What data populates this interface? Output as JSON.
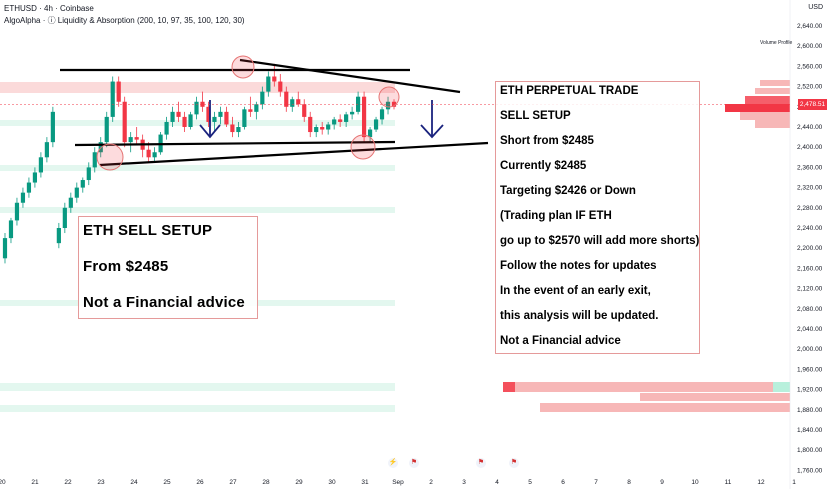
{
  "header": {
    "symbol_line": "ETHUSD · 4h · Coinbase",
    "indicator_line": "AlgoAlpha · ⓘ Liquidity & Absorption (200, 10, 97, 35, 100, 120, 30)",
    "currency": "USD",
    "volume_profile_label": "Volume Profile"
  },
  "current_price": "2,478.51",
  "colors": {
    "up": "#089981",
    "down": "#f23645",
    "note_border": "#e59a9a",
    "arrow": "#1a237e",
    "zone_red": "#f7b7b7",
    "zone_green": "#d6f5e9"
  },
  "notes": {
    "left": [
      "ETH SELL SETUP",
      "From $2485",
      "Not a Financial advice"
    ],
    "right": [
      "ETH PERPETUAL TRADE",
      "SELL SETUP",
      "Short from $2485",
      "Currently $2485",
      "Targeting $2426 or Down",
      "(Trading plan IF ETH",
      "go up to $2570 will add more shorts)",
      "Follow the notes for updates",
      "In the event of an early exit,",
      "this analysis will be updated.",
      "Not a Financial advice"
    ]
  },
  "events": [
    "event-icon",
    "flag-icon",
    "flag-icon",
    "flag-icon"
  ],
  "chart_data": {
    "type": "candlestick",
    "y_ticks": [
      "2,640.00",
      "2,600.00",
      "2,560.00",
      "2,520.00",
      "2,480.00",
      "2,440.00",
      "2,400.00",
      "2,360.00",
      "2,320.00",
      "2,280.00",
      "2,240.00",
      "2,200.00",
      "2,160.00",
      "2,120.00",
      "2,080.00",
      "2,040.00",
      "2,000.00",
      "1,960.00",
      "1,920.00",
      "1,880.00",
      "1,840.00",
      "1,800.00",
      "1,760.00"
    ],
    "x_ticks": [
      "20",
      "21",
      "22",
      "23",
      "24",
      "25",
      "26",
      "27",
      "28",
      "29",
      "30",
      "31",
      "Sep",
      "2",
      "3",
      "4",
      "5",
      "6",
      "7",
      "8",
      "9",
      "10",
      "11",
      "12",
      "1"
    ],
    "ylim": [
      1750,
      2660
    ],
    "candles": [
      [
        2210,
        2250,
        2200,
        2240
      ],
      [
        2240,
        2290,
        2230,
        2280
      ],
      [
        2280,
        2310,
        2270,
        2300
      ],
      [
        2300,
        2330,
        2290,
        2320
      ],
      [
        2320,
        2340,
        2310,
        2335
      ],
      [
        2335,
        2370,
        2325,
        2360
      ],
      [
        2360,
        2400,
        2350,
        2390
      ],
      [
        2390,
        2420,
        2380,
        2410
      ],
      [
        2410,
        2470,
        2400,
        2460
      ],
      [
        2460,
        2540,
        2450,
        2530
      ],
      [
        2530,
        2540,
        2480,
        2490
      ],
      [
        2490,
        2500,
        2400,
        2410
      ],
      [
        2410,
        2430,
        2390,
        2420
      ],
      [
        2420,
        2440,
        2405,
        2415
      ],
      [
        2415,
        2425,
        2380,
        2395
      ],
      [
        2395,
        2410,
        2370,
        2380
      ],
      [
        2380,
        2400,
        2370,
        2390
      ],
      [
        2390,
        2430,
        2385,
        2425
      ],
      [
        2425,
        2460,
        2415,
        2450
      ],
      [
        2450,
        2480,
        2440,
        2470
      ],
      [
        2470,
        2490,
        2450,
        2460
      ],
      [
        2460,
        2470,
        2430,
        2440
      ],
      [
        2440,
        2470,
        2435,
        2465
      ],
      [
        2465,
        2500,
        2455,
        2490
      ],
      [
        2490,
        2510,
        2470,
        2480
      ],
      [
        2480,
        2490,
        2440,
        2450
      ],
      [
        2450,
        2470,
        2430,
        2460
      ],
      [
        2460,
        2480,
        2445,
        2470
      ],
      [
        2470,
        2480,
        2440,
        2445
      ],
      [
        2445,
        2460,
        2420,
        2430
      ],
      [
        2430,
        2450,
        2420,
        2440
      ],
      [
        2440,
        2480,
        2435,
        2475
      ],
      [
        2475,
        2500,
        2460,
        2470
      ],
      [
        2470,
        2490,
        2455,
        2485
      ],
      [
        2485,
        2520,
        2475,
        2510
      ],
      [
        2510,
        2550,
        2500,
        2540
      ],
      [
        2540,
        2565,
        2520,
        2530
      ],
      [
        2530,
        2545,
        2500,
        2510
      ],
      [
        2510,
        2520,
        2470,
        2480
      ],
      [
        2480,
        2500,
        2470,
        2495
      ],
      [
        2495,
        2510,
        2480,
        2485
      ],
      [
        2485,
        2495,
        2450,
        2460
      ],
      [
        2460,
        2470,
        2420,
        2430
      ],
      [
        2430,
        2445,
        2420,
        2440
      ],
      [
        2440,
        2450,
        2425,
        2435
      ],
      [
        2435,
        2450,
        2425,
        2445
      ],
      [
        2445,
        2460,
        2435,
        2455
      ],
      [
        2455,
        2465,
        2440,
        2450
      ],
      [
        2450,
        2470,
        2440,
        2465
      ],
      [
        2465,
        2480,
        2455,
        2470
      ],
      [
        2470,
        2510,
        2465,
        2500
      ],
      [
        2500,
        2510,
        2410,
        2420
      ],
      [
        2420,
        2440,
        2410,
        2435
      ],
      [
        2435,
        2460,
        2430,
        2455
      ],
      [
        2455,
        2480,
        2445,
        2475
      ],
      [
        2475,
        2500,
        2465,
        2490
      ],
      [
        2490,
        2495,
        2475,
        2480
      ]
    ],
    "resistance_line": "flat",
    "support_line": "rising",
    "descending_line": "falling"
  }
}
